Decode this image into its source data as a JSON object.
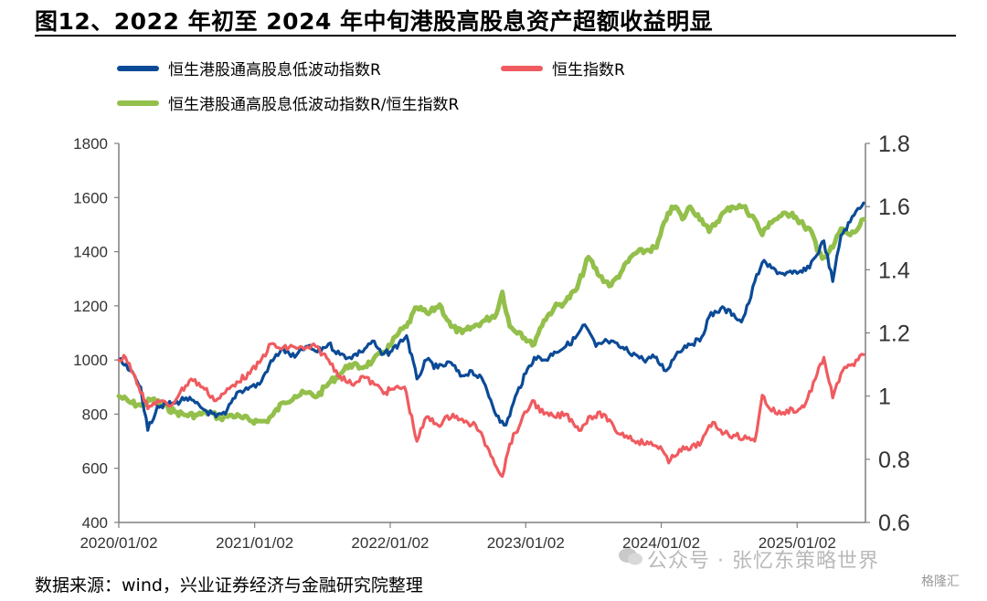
{
  "title": "图12、2022 年初至 2024 年中旬港股高股息资产超额收益明显",
  "source": "数据来源：wind，兴业证券经济与金融研究院整理",
  "watermark": "公众号 · 张忆东策略世界",
  "badge": "格隆汇",
  "colors": {
    "blue": "#0b4a96",
    "red": "#ef5b5f",
    "green": "#93bf4b",
    "axis": "#7f7f7f"
  },
  "chart_data": {
    "type": "line",
    "x_ticks": [
      "2020/01/02",
      "2021/01/02",
      "2022/01/02",
      "2023/01/02",
      "2024/01/02",
      "2025/01/02"
    ],
    "y_left": {
      "min": 400,
      "max": 1800,
      "ticks": [
        "400",
        "600",
        "800",
        "1000",
        "1200",
        "1400",
        "1600",
        "1800"
      ]
    },
    "y_right": {
      "min": 0.6,
      "max": 1.8,
      "ticks": [
        "0.6",
        "0.8",
        "1",
        "1.2",
        "1.4",
        "1.6",
        "1.8"
      ]
    },
    "series": [
      {
        "name": "恒生港股通高股息低波动指数R",
        "axis": "left",
        "color": "#0b4a96",
        "points": [
          [
            "2020-01-02",
            1000
          ],
          [
            "2020-02-01",
            960
          ],
          [
            "2020-03-01",
            900
          ],
          [
            "2020-03-20",
            740
          ],
          [
            "2020-04-15",
            830
          ],
          [
            "2020-06-01",
            840
          ],
          [
            "2020-07-01",
            860
          ],
          [
            "2020-08-15",
            820
          ],
          [
            "2020-09-20",
            790
          ],
          [
            "2020-10-15",
            800
          ],
          [
            "2020-11-15",
            880
          ],
          [
            "2020-12-20",
            900
          ],
          [
            "2021-01-15",
            910
          ],
          [
            "2021-02-10",
            980
          ],
          [
            "2021-03-15",
            1040
          ],
          [
            "2021-04-20",
            1010
          ],
          [
            "2021-05-20",
            1050
          ],
          [
            "2021-06-20",
            1030
          ],
          [
            "2021-07-20",
            1060
          ],
          [
            "2021-08-20",
            1020
          ],
          [
            "2021-09-15",
            1010
          ],
          [
            "2021-10-15",
            1030
          ],
          [
            "2021-11-15",
            1070
          ],
          [
            "2021-12-10",
            1020
          ],
          [
            "2022-01-02",
            1030
          ],
          [
            "2022-01-25",
            1060
          ],
          [
            "2022-02-15",
            1090
          ],
          [
            "2022-03-15",
            930
          ],
          [
            "2022-04-10",
            1000
          ],
          [
            "2022-05-10",
            970
          ],
          [
            "2022-06-15",
            990
          ],
          [
            "2022-07-10",
            940
          ],
          [
            "2022-08-10",
            960
          ],
          [
            "2022-09-10",
            920
          ],
          [
            "2022-10-25",
            770
          ],
          [
            "2022-11-10",
            760
          ],
          [
            "2022-12-10",
            880
          ],
          [
            "2023-01-02",
            950
          ],
          [
            "2023-01-25",
            1010
          ],
          [
            "2023-02-25",
            1000
          ],
          [
            "2023-03-20",
            1030
          ],
          [
            "2023-04-20",
            1050
          ],
          [
            "2023-05-15",
            1080
          ],
          [
            "2023-06-10",
            1130
          ],
          [
            "2023-07-10",
            1050
          ],
          [
            "2023-08-10",
            1070
          ],
          [
            "2023-09-10",
            1050
          ],
          [
            "2023-10-25",
            1020
          ],
          [
            "2023-11-15",
            1000
          ],
          [
            "2023-12-15",
            1010
          ],
          [
            "2024-01-15",
            960
          ],
          [
            "2024-02-15",
            1030
          ],
          [
            "2024-03-15",
            1060
          ],
          [
            "2024-04-15",
            1070
          ],
          [
            "2024-05-10",
            1160
          ],
          [
            "2024-06-10",
            1190
          ],
          [
            "2024-07-15",
            1170
          ],
          [
            "2024-08-05",
            1140
          ],
          [
            "2024-08-25",
            1210
          ],
          [
            "2024-09-10",
            1290
          ],
          [
            "2024-09-30",
            1360
          ],
          [
            "2024-10-25",
            1340
          ],
          [
            "2024-11-20",
            1320
          ],
          [
            "2024-12-20",
            1320
          ],
          [
            "2025-01-02",
            1320
          ],
          [
            "2025-01-25",
            1330
          ],
          [
            "2025-02-20",
            1380
          ],
          [
            "2025-03-15",
            1440
          ],
          [
            "2025-04-08",
            1290
          ],
          [
            "2025-04-30",
            1460
          ],
          [
            "2025-05-25",
            1510
          ],
          [
            "2025-06-15",
            1560
          ],
          [
            "2025-06-30",
            1580
          ]
        ]
      },
      {
        "name": "恒生指数R",
        "axis": "left",
        "color": "#ef5b5f",
        "points": [
          [
            "2020-01-02",
            1000
          ],
          [
            "2020-01-20",
            1010
          ],
          [
            "2020-02-15",
            940
          ],
          [
            "2020-03-20",
            820
          ],
          [
            "2020-04-15",
            850
          ],
          [
            "2020-05-20",
            830
          ],
          [
            "2020-06-15",
            880
          ],
          [
            "2020-07-15",
            930
          ],
          [
            "2020-08-15",
            900
          ],
          [
            "2020-09-20",
            850
          ],
          [
            "2020-10-15",
            880
          ],
          [
            "2020-11-15",
            920
          ],
          [
            "2020-12-20",
            950
          ],
          [
            "2021-01-15",
            990
          ],
          [
            "2021-02-15",
            1060
          ],
          [
            "2021-03-15,",
            1040
          ],
          [
            "2021-04-15",
            1050
          ],
          [
            "2021-05-15",
            1040
          ],
          [
            "2021-06-15",
            1050
          ],
          [
            "2021-07-20",
            1000
          ],
          [
            "2021-08-20",
            940
          ],
          [
            "2021-09-20",
            910
          ],
          [
            "2021-10-20",
            940
          ],
          [
            "2021-11-20",
            910
          ],
          [
            "2021-12-20",
            880
          ],
          [
            "2022-01-02",
            890
          ],
          [
            "2022-02-10",
            900
          ],
          [
            "2022-03-15",
            700
          ],
          [
            "2022-04-10",
            790
          ],
          [
            "2022-05-10",
            760
          ],
          [
            "2022-06-20",
            800
          ],
          [
            "2022-07-20",
            770
          ],
          [
            "2022-08-20",
            760
          ],
          [
            "2022-09-20",
            680
          ],
          [
            "2022-10-31",
            570
          ],
          [
            "2022-11-20",
            690
          ],
          [
            "2022-12-20",
            770
          ],
          [
            "2023-01-20",
            850
          ],
          [
            "2023-02-20",
            800
          ],
          [
            "2023-03-20",
            790
          ],
          [
            "2023-04-20",
            800
          ],
          [
            "2023-05-31",
            740
          ],
          [
            "2023-06-20",
            790
          ],
          [
            "2023-07-31",
            800
          ],
          [
            "2023-08-31",
            740
          ],
          [
            "2023-09-30",
            720
          ],
          [
            "2023-10-31",
            700
          ],
          [
            "2023-11-30",
            690
          ],
          [
            "2023-12-31",
            680
          ],
          [
            "2024-01-22",
            620
          ],
          [
            "2024-02-20",
            670
          ],
          [
            "2024-03-20",
            670
          ],
          [
            "2024-04-20",
            700
          ],
          [
            "2024-05-20",
            770
          ],
          [
            "2024-06-20",
            730
          ],
          [
            "2024-07-20",
            720
          ],
          [
            "2024-08-20",
            710
          ],
          [
            "2024-09-10",
            700
          ],
          [
            "2024-09-30",
            870
          ],
          [
            "2024-10-20",
            820
          ],
          [
            "2024-11-20",
            800
          ],
          [
            "2024-12-20",
            820
          ],
          [
            "2025-01-02",
            810
          ],
          [
            "2025-01-25",
            840
          ],
          [
            "2025-02-20",
            930
          ],
          [
            "2025-03-15",
            1010
          ],
          [
            "2025-04-08",
            860
          ],
          [
            "2025-04-30",
            950
          ],
          [
            "2025-05-25",
            980
          ],
          [
            "2025-06-15",
            1000
          ],
          [
            "2025-06-30",
            1020
          ]
        ]
      },
      {
        "name": "恒生港股通高股息低波动指数R/恒生指数R",
        "axis": "right",
        "color": "#93bf4b",
        "points": [
          [
            "2020-01-02",
            1.0
          ],
          [
            "2020-02-01",
            0.98
          ],
          [
            "2020-03-01",
            0.97
          ],
          [
            "2020-04-01",
            0.99
          ],
          [
            "2020-05-01",
            0.97
          ],
          [
            "2020-06-01",
            0.95
          ],
          [
            "2020-07-01",
            0.94
          ],
          [
            "2020-08-01",
            0.94
          ],
          [
            "2020-09-01",
            0.95
          ],
          [
            "2020-10-01",
            0.93
          ],
          [
            "2020-11-01",
            0.94
          ],
          [
            "2020-12-01",
            0.93
          ],
          [
            "2021-01-10",
            0.92
          ],
          [
            "2021-02-01",
            0.92
          ],
          [
            "2021-02-20",
            0.94
          ],
          [
            "2021-03-20",
            0.98
          ],
          [
            "2021-04-20",
            1.0
          ],
          [
            "2021-05-20",
            1.01
          ],
          [
            "2021-06-20",
            1.0
          ],
          [
            "2021-07-20",
            1.04
          ],
          [
            "2021-08-20",
            1.07
          ],
          [
            "2021-09-15",
            1.1
          ],
          [
            "2021-10-15",
            1.09
          ],
          [
            "2021-11-15",
            1.11
          ],
          [
            "2021-12-15",
            1.14
          ],
          [
            "2022-01-02",
            1.16
          ],
          [
            "2022-01-25",
            1.2
          ],
          [
            "2022-02-15",
            1.22
          ],
          [
            "2022-03-15",
            1.28
          ],
          [
            "2022-04-15",
            1.26
          ],
          [
            "2022-05-15",
            1.29
          ],
          [
            "2022-06-15",
            1.22
          ],
          [
            "2022-07-15",
            1.2
          ],
          [
            "2022-08-15",
            1.22
          ],
          [
            "2022-09-15",
            1.24
          ],
          [
            "2022-10-15",
            1.26
          ],
          [
            "2022-10-31",
            1.33
          ],
          [
            "2022-11-20",
            1.22
          ],
          [
            "2022-12-20",
            1.2
          ],
          [
            "2023-01-20",
            1.16
          ],
          [
            "2023-02-20",
            1.24
          ],
          [
            "2023-03-20",
            1.28
          ],
          [
            "2023-04-20",
            1.3
          ],
          [
            "2023-05-20",
            1.34
          ],
          [
            "2023-06-20",
            1.44
          ],
          [
            "2023-07-20",
            1.38
          ],
          [
            "2023-08-20",
            1.35
          ],
          [
            "2023-09-20",
            1.4
          ],
          [
            "2023-10-20",
            1.45
          ],
          [
            "2023-11-20",
            1.46
          ],
          [
            "2023-12-20",
            1.47
          ],
          [
            "2024-01-20",
            1.58
          ],
          [
            "2024-02-10",
            1.6
          ],
          [
            "2024-02-28",
            1.56
          ],
          [
            "2024-03-20",
            1.6
          ],
          [
            "2024-04-20",
            1.56
          ],
          [
            "2024-05-10",
            1.52
          ],
          [
            "2024-06-10",
            1.57
          ],
          [
            "2024-07-10",
            1.6
          ],
          [
            "2024-08-10",
            1.6
          ],
          [
            "2024-09-10",
            1.56
          ],
          [
            "2024-09-30",
            1.51
          ],
          [
            "2024-10-20",
            1.55
          ],
          [
            "2024-11-20",
            1.57
          ],
          [
            "2024-12-20",
            1.58
          ],
          [
            "2025-01-02",
            1.56
          ],
          [
            "2025-01-20",
            1.54
          ],
          [
            "2025-02-10",
            1.52
          ],
          [
            "2025-02-25",
            1.46
          ],
          [
            "2025-03-15",
            1.44
          ],
          [
            "2025-04-08",
            1.47
          ],
          [
            "2025-04-30",
            1.53
          ],
          [
            "2025-05-25",
            1.51
          ],
          [
            "2025-06-15",
            1.53
          ],
          [
            "2025-06-30",
            1.56
          ]
        ]
      }
    ]
  }
}
